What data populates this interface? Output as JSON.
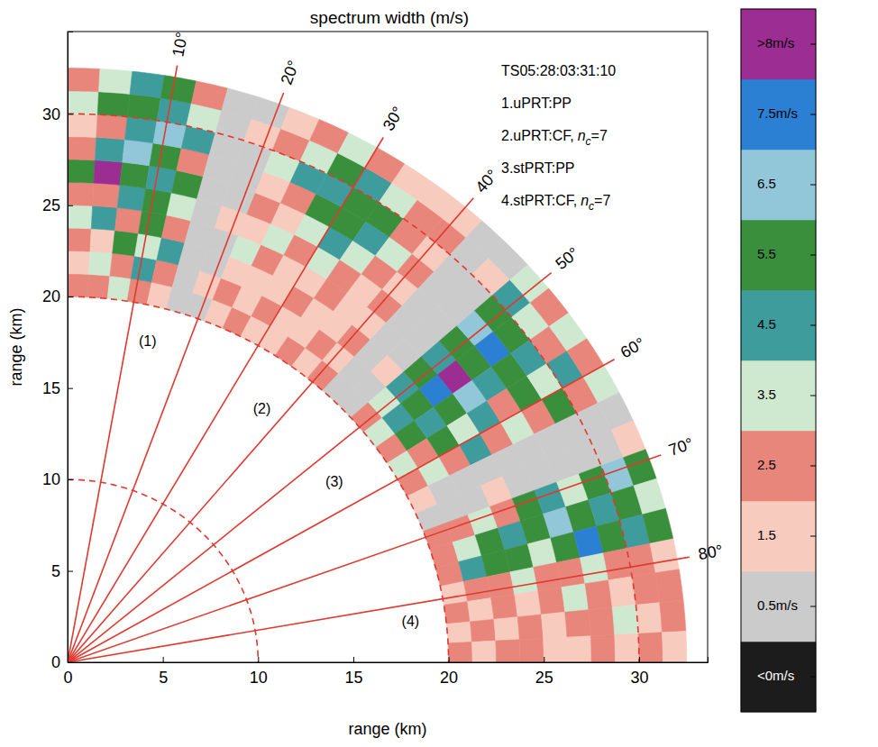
{
  "chart_data": {
    "type": "polar_heatmap",
    "title": "spectrum width (m/s)",
    "x_label": "range (km)",
    "y_label": "range (km)",
    "xlim": [
      0,
      33.6
    ],
    "ylim": [
      0,
      34.5
    ],
    "xticks": [
      0,
      5,
      10,
      15,
      20,
      25,
      30
    ],
    "yticks": [
      0,
      5,
      10,
      15,
      20,
      25,
      30
    ],
    "rings": [
      10,
      20,
      30
    ],
    "radials": [
      {
        "angle": 10,
        "label": "10°"
      },
      {
        "angle": 20,
        "label": "20°"
      },
      {
        "angle": 30,
        "label": "30°"
      },
      {
        "angle": 40,
        "label": "40°"
      },
      {
        "angle": 50,
        "label": "50°"
      },
      {
        "angle": 60,
        "label": "60°"
      },
      {
        "angle": 70,
        "label": "70°"
      },
      {
        "angle": 80,
        "label": "80°"
      }
    ],
    "sector_labels": [
      {
        "text": "(1)",
        "x": 4.2,
        "y": 17.5
      },
      {
        "text": "(2)",
        "x": 10.2,
        "y": 13.8
      },
      {
        "text": "(3)",
        "x": 14.0,
        "y": 9.8
      },
      {
        "text": "(4)",
        "x": 18.0,
        "y": 2.2
      }
    ],
    "info": [
      {
        "text": "TS05:28:03:31:10"
      },
      {
        "text": "1.uPRT:PP"
      },
      {
        "text": "2.uPRT:CF,",
        "var": "n",
        "sub": "c",
        "suffix": "=7"
      },
      {
        "text": "3.stPRT:PP"
      },
      {
        "text": "4.stPRT:CF,",
        "var": "n",
        "sub": "c",
        "suffix": "=7"
      }
    ],
    "cells": {
      "azimuth_edges": [
        0,
        3,
        6,
        9,
        12,
        15,
        18,
        21,
        24,
        27,
        30,
        33,
        36,
        39,
        42,
        45,
        48,
        51,
        54,
        57,
        60,
        63,
        66,
        69,
        72,
        75,
        78,
        81,
        84,
        87,
        90
      ],
      "range_edges": [
        20,
        21.25,
        22.5,
        23.75,
        25,
        26.25,
        27.5,
        28.75,
        30,
        31.25,
        32.5
      ],
      "values": [
        [
          2.5,
          1.5,
          2.5,
          3.5,
          2.5,
          5.5,
          2.5,
          1.5,
          3.5,
          2.5
        ],
        [
          2.5,
          3.5,
          1.5,
          4.5,
          2.5,
          8.5,
          4.5,
          2.5,
          5.5,
          3.5
        ],
        [
          3.5,
          2.5,
          5.5,
          2.5,
          4.5,
          5.5,
          6.5,
          4.5,
          5.5,
          4.5
        ],
        [
          2.5,
          4.5,
          3.5,
          5.5,
          5.5,
          4.5,
          5.5,
          6.5,
          4.5,
          5.5
        ],
        [
          1.5,
          2.5,
          4.5,
          2.5,
          3.5,
          5.5,
          2.5,
          4.5,
          3.5,
          2.5
        ],
        [
          0.5,
          0.5,
          0.5,
          0.5,
          0.5,
          0.5,
          0.5,
          0.5,
          0.5,
          0.5
        ],
        [
          0.5,
          1.5,
          0.5,
          0.5,
          1.5,
          0.5,
          0.5,
          0.5,
          1.5,
          0.5
        ],
        [
          1.5,
          2.5,
          1.5,
          3.5,
          1.5,
          2.5,
          1.5,
          3.5,
          2.5,
          1.5
        ],
        [
          2.5,
          1.5,
          1.5,
          2.5,
          3.5,
          1.5,
          2.5,
          4.5,
          3.5,
          2.5
        ],
        [
          1.5,
          2.5,
          1.5,
          1.5,
          2.5,
          3.5,
          5.5,
          4.5,
          5.5,
          3.5
        ],
        [
          1.5,
          1.5,
          2.5,
          1.5,
          3.5,
          4.5,
          5.5,
          5.5,
          4.5,
          2.5
        ],
        [
          2.5,
          1.5,
          1.5,
          2.5,
          2.5,
          3.5,
          4.5,
          5.5,
          3.5,
          1.5
        ],
        [
          1.5,
          2.5,
          1.5,
          1.5,
          1.5,
          2.5,
          3.5,
          2.5,
          2.5,
          1.5
        ],
        [
          2.5,
          1.5,
          2.5,
          1.5,
          2.5,
          1.5,
          2.5,
          1.5,
          2.5,
          1.5
        ],
        [
          0.5,
          0.5,
          0.5,
          0.5,
          0.5,
          0.5,
          0.5,
          0.5,
          0.5,
          0.5
        ],
        [
          0.5,
          0.5,
          1.5,
          0.5,
          0.5,
          0.5,
          0.5,
          0.5,
          1.5,
          0.5
        ],
        [
          2.5,
          3.5,
          4.5,
          5.5,
          4.5,
          5.5,
          6.5,
          5.5,
          4.5,
          3.5
        ],
        [
          3.5,
          4.5,
          5.5,
          7.5,
          8.5,
          5.5,
          7.5,
          5.5,
          3.5,
          2.5
        ],
        [
          2.5,
          5.5,
          4.5,
          5.5,
          6.5,
          4.5,
          5.5,
          4.5,
          2.5,
          3.5
        ],
        [
          3.5,
          2.5,
          5.5,
          3.5,
          4.5,
          2.5,
          5.5,
          3.5,
          4.5,
          2.5
        ],
        [
          2.5,
          3.5,
          2.5,
          4.5,
          2.5,
          3.5,
          2.5,
          5.5,
          2.5,
          3.5
        ],
        [
          1.5,
          0.5,
          0.5,
          0.5,
          0.5,
          0.5,
          0.5,
          0.5,
          0.5,
          0.5
        ],
        [
          0.5,
          0.5,
          0.5,
          1.5,
          0.5,
          0.5,
          0.5,
          0.5,
          0.5,
          1.5
        ],
        [
          2.5,
          2.5,
          3.5,
          2.5,
          5.5,
          4.5,
          3.5,
          5.5,
          6.5,
          5.5
        ],
        [
          2.5,
          3.5,
          5.5,
          4.5,
          5.5,
          6.5,
          5.5,
          4.5,
          5.5,
          3.5
        ],
        [
          2.5,
          4.5,
          5.5,
          5.5,
          3.5,
          5.5,
          7.5,
          5.5,
          4.5,
          5.5
        ],
        [
          1.5,
          2.5,
          2.5,
          3.5,
          2.5,
          2.5,
          3.5,
          2.5,
          2.5,
          1.5
        ],
        [
          2.5,
          1.5,
          2.5,
          1.5,
          2.5,
          3.5,
          2.5,
          1.5,
          2.5,
          2.5
        ],
        [
          1.5,
          2.5,
          1.5,
          2.5,
          1.5,
          2.5,
          2.5,
          3.5,
          1.5,
          2.5
        ],
        [
          2.5,
          1.5,
          2.5,
          2.5,
          1.5,
          1.5,
          2.5,
          1.5,
          2.5,
          1.5
        ]
      ]
    },
    "colorbar": {
      "lim": [
        -1,
        9
      ],
      "thresholds": [
        0,
        1,
        2,
        3,
        4,
        5,
        6,
        7,
        8
      ],
      "colors": [
        "#1c1c1c",
        "#cbcbcb",
        "#f7cbbd",
        "#e8867b",
        "#cfe9d1",
        "#3f9c9c",
        "#3a8f3c",
        "#91c7d8",
        "#2b80d4",
        "#9c2d92"
      ],
      "ticks": [
        {
          "value": 8.5,
          "label": ">8m/s"
        },
        {
          "value": 7.5,
          "label": "7.5m/s"
        },
        6.5,
        5.5,
        4.5,
        3.5,
        2.5,
        1.5,
        {
          "value": 0.5,
          "label": "0.5m/s"
        },
        {
          "value": -0.5,
          "label": "<0m/s"
        }
      ]
    }
  }
}
